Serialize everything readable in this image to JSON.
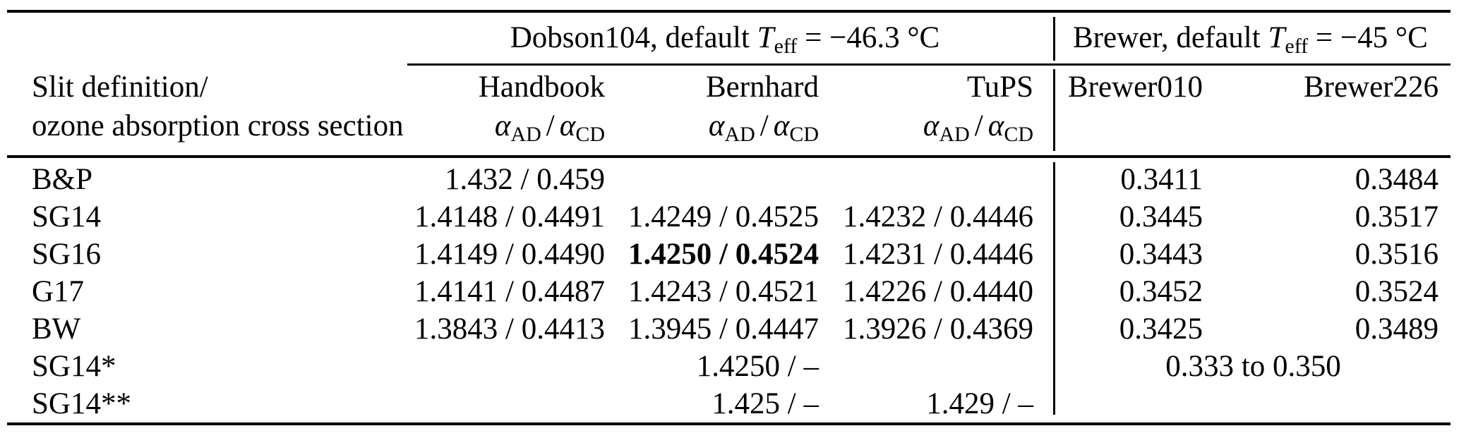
{
  "table": {
    "section_headers": {
      "dobson": {
        "prefix": "Dobson104, default ",
        "t": "T",
        "t_sub": "eff",
        "suffix": " = −46.3 °C"
      },
      "brewer": {
        "prefix": "Brewer, default ",
        "t": "T",
        "t_sub": "eff",
        "suffix": " = −45 °C"
      }
    },
    "col_headers": {
      "slit_line1": "Slit definition/",
      "slit_line2": "ozone absorption cross section",
      "handbook": "Handbook",
      "bernhard": "Bernhard",
      "tups": "TuPS",
      "brewer010": "Brewer010",
      "brewer226": "Brewer226",
      "alpha": "α",
      "alpha_sub_ad": "AD",
      "alpha_sub_cd": "CD",
      "alpha_slash": "/"
    },
    "rows": [
      {
        "label": "B&P",
        "handbook": "1.432 / 0.459",
        "bernhard": "",
        "tups": "",
        "brewer010": "0.3411",
        "brewer226": "0.3484"
      },
      {
        "label": "SG14",
        "handbook": "1.4148 / 0.4491",
        "bernhard": "1.4249 / 0.4525",
        "tups": "1.4232 / 0.4446",
        "brewer010": "0.3445",
        "brewer226": "0.3517"
      },
      {
        "label": "SG16",
        "handbook": "1.4149 / 0.4490",
        "bernhard": "1.4250 / 0.4524",
        "tups": "1.4231 / 0.4446",
        "brewer010": "0.3443",
        "brewer226": "0.3516"
      },
      {
        "label": "G17",
        "handbook": "1.4141 / 0.4487",
        "bernhard": "1.4243 / 0.4521",
        "tups": "1.4226 / 0.4440",
        "brewer010": "0.3452",
        "brewer226": "0.3524"
      },
      {
        "label": "BW",
        "handbook": "1.3843 / 0.4413",
        "bernhard": "1.3945 / 0.4447",
        "tups": "1.3926 / 0.4369",
        "brewer010": "0.3425",
        "brewer226": "0.3489"
      },
      {
        "label": "SG14*",
        "handbook": "",
        "bernhard": "1.4250 / –",
        "tups": "",
        "brewer_span": "0.333 to 0.350"
      },
      {
        "label": "SG14**",
        "handbook": "",
        "bernhard": "1.425 / –",
        "tups": "1.429 / –",
        "brewer010": "",
        "brewer226": ""
      }
    ]
  }
}
